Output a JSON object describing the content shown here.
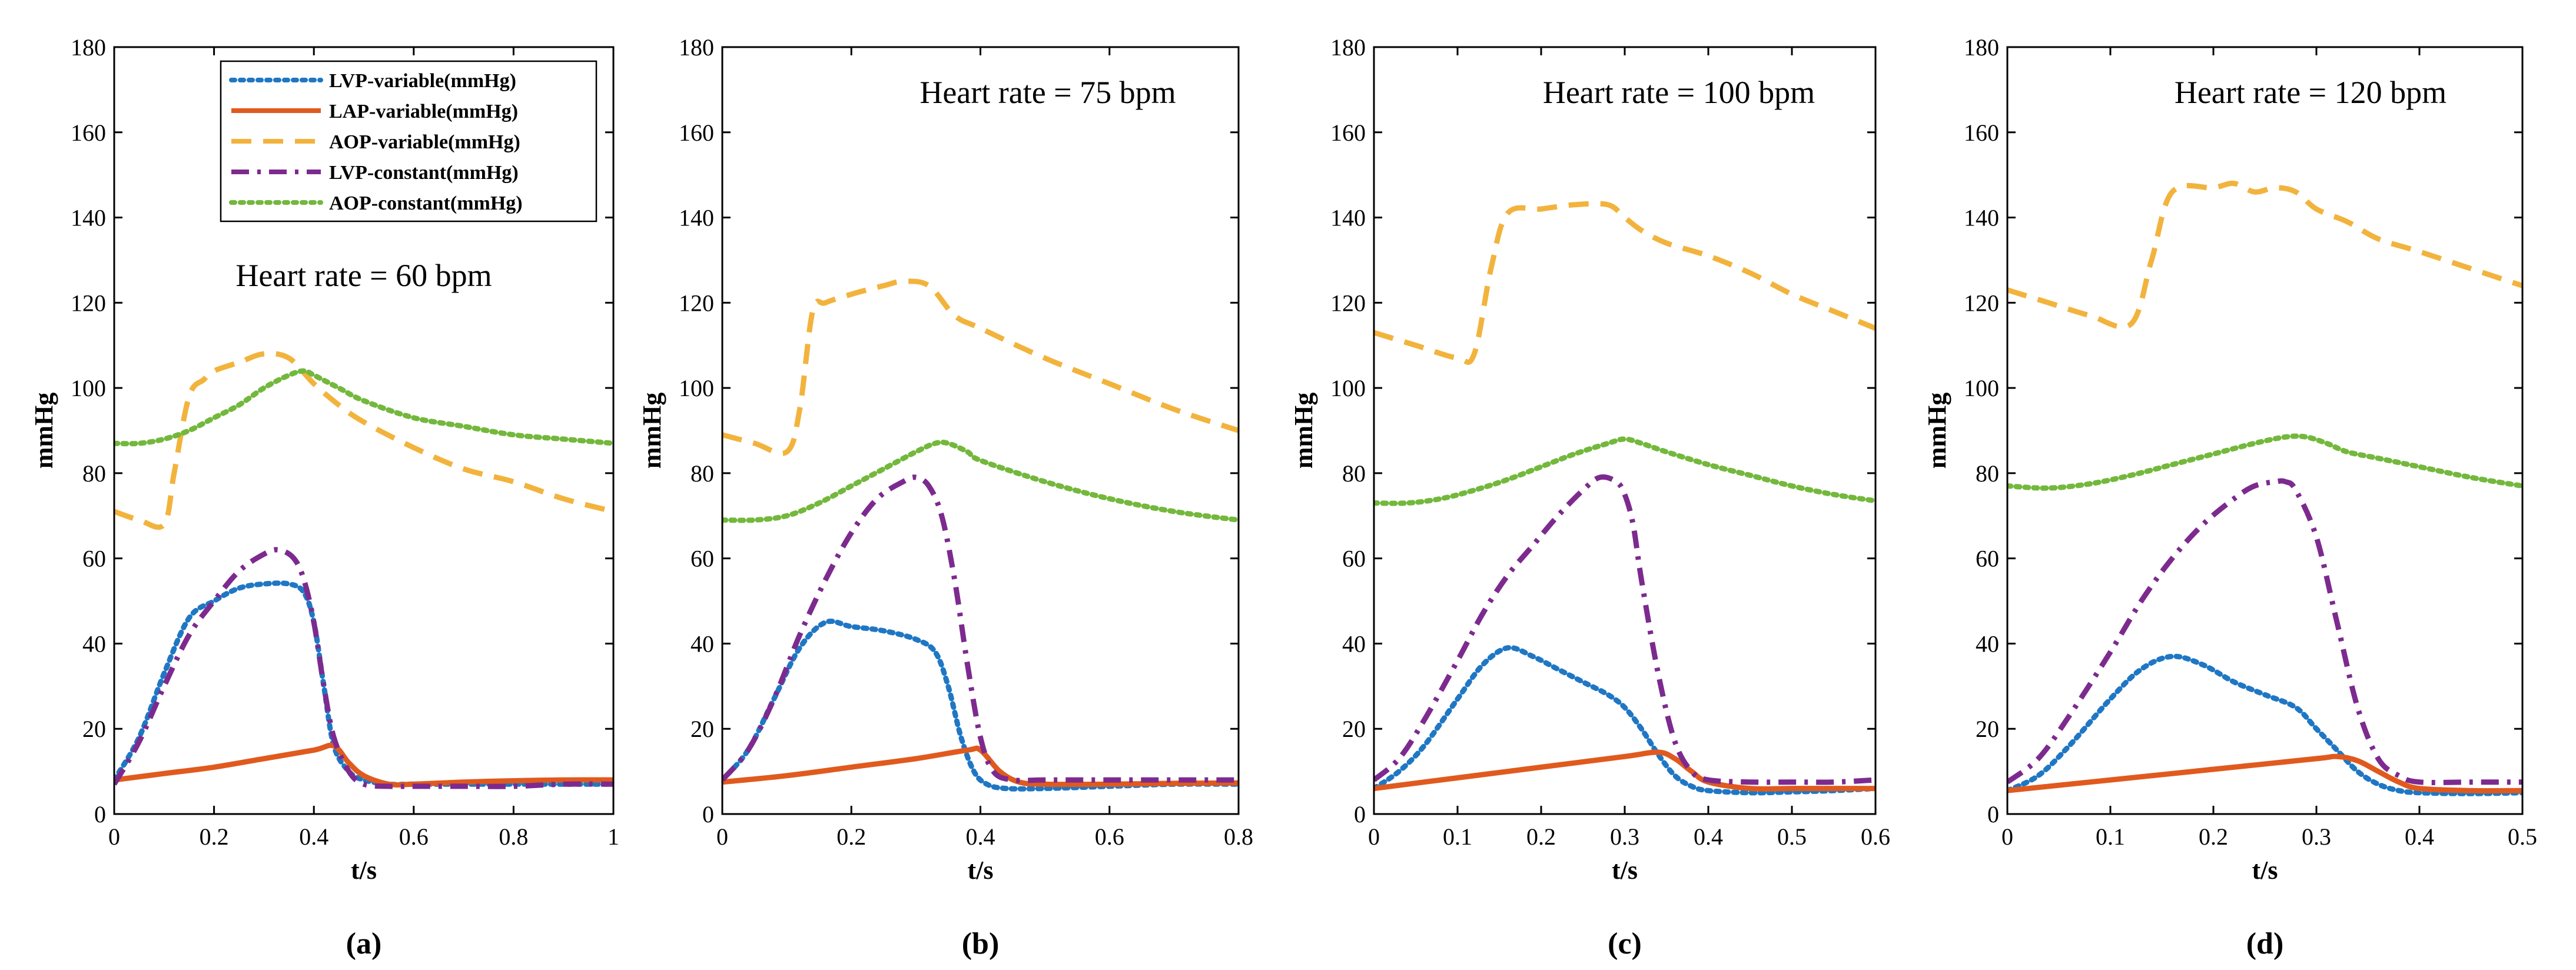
{
  "series_styles": [
    {
      "name": "LVP-variable(mmHg)",
      "color": "#1f77c4",
      "dash": "dot"
    },
    {
      "name": "LAP-variable(mmHg)",
      "color": "#e05a1e",
      "dash": "solid"
    },
    {
      "name": "AOP-variable(mmHg)",
      "color": "#f2b33d",
      "dash": "dash"
    },
    {
      "name": "LVP-constant(mmHg)",
      "color": "#7d2a8f",
      "dash": "dashdot"
    },
    {
      "name": "AOP-constant(mmHg)",
      "color": "#73b83c",
      "dash": "dot"
    }
  ],
  "chart_data": [
    {
      "type": "line",
      "panel_label": "(a)",
      "annotation": "Heart rate = 60 bpm",
      "xlabel": "t/s",
      "ylabel": "mmHg",
      "xlim": [
        0,
        1
      ],
      "ylim": [
        0,
        180
      ],
      "xticks": [
        0,
        0.2,
        0.4,
        0.6,
        0.8,
        1
      ],
      "xtick_labels": [
        "0",
        "0.2",
        "0.4",
        "0.6",
        "0.8",
        "1"
      ],
      "yticks": [
        0,
        20,
        40,
        60,
        80,
        100,
        120,
        140,
        160,
        180
      ],
      "legend": "top-right",
      "series": [
        {
          "name": "LVP-variable(mmHg)",
          "x": [
            0,
            0.05,
            0.1,
            0.15,
            0.2,
            0.25,
            0.3,
            0.35,
            0.38,
            0.4,
            0.42,
            0.44,
            0.47,
            0.5,
            0.55,
            0.6,
            0.7,
            0.8,
            0.9,
            1
          ],
          "y": [
            8,
            18,
            33,
            46,
            50,
            53,
            54,
            54,
            52,
            45,
            30,
            16,
            10,
            8,
            7,
            7,
            7,
            7,
            7,
            7
          ]
        },
        {
          "name": "LAP-variable(mmHg)",
          "x": [
            0,
            0.1,
            0.2,
            0.3,
            0.4,
            0.44,
            0.47,
            0.5,
            0.55,
            0.6,
            0.7,
            0.8,
            0.9,
            1
          ],
          "y": [
            8,
            9.5,
            11,
            13,
            15,
            16,
            12,
            9,
            7,
            7,
            7.5,
            7.8,
            8,
            8
          ]
        },
        {
          "name": "AOP-variable(mmHg)",
          "x": [
            0,
            0.05,
            0.1,
            0.12,
            0.15,
            0.18,
            0.2,
            0.25,
            0.3,
            0.35,
            0.4,
            0.45,
            0.5,
            0.6,
            0.7,
            0.8,
            0.9,
            1
          ],
          "y": [
            71,
            69,
            68,
            80,
            98,
            102,
            104,
            106,
            108,
            107,
            101,
            96,
            92,
            86,
            81,
            78,
            74,
            71
          ]
        },
        {
          "name": "LVP-constant(mmHg)",
          "x": [
            0,
            0.05,
            0.1,
            0.15,
            0.2,
            0.25,
            0.3,
            0.33,
            0.36,
            0.38,
            0.4,
            0.42,
            0.44,
            0.47,
            0.5,
            0.55,
            0.6,
            0.7,
            0.8,
            0.9,
            1
          ],
          "y": [
            7,
            17,
            30,
            42,
            50,
            57,
            61,
            62,
            60,
            55,
            45,
            30,
            18,
            10,
            7,
            6.5,
            6.5,
            6.5,
            6.5,
            7,
            7
          ]
        },
        {
          "name": "AOP-constant(mmHg)",
          "x": [
            0,
            0.05,
            0.1,
            0.15,
            0.2,
            0.25,
            0.3,
            0.35,
            0.38,
            0.4,
            0.45,
            0.5,
            0.6,
            0.7,
            0.8,
            0.9,
            1
          ],
          "y": [
            87,
            87,
            88,
            90,
            93,
            96,
            100,
            103,
            104,
            103,
            100,
            97,
            93,
            91,
            89,
            88,
            87
          ]
        }
      ]
    },
    {
      "type": "line",
      "panel_label": "(b)",
      "annotation": "Heart rate = 75 bpm",
      "xlabel": "t/s",
      "ylabel": "mmHg",
      "xlim": [
        0,
        0.8
      ],
      "ylim": [
        0,
        180
      ],
      "xticks": [
        0,
        0.2,
        0.4,
        0.6,
        0.8
      ],
      "xtick_labels": [
        "0",
        "0.2",
        "0.4",
        "0.6",
        "0.8"
      ],
      "yticks": [
        0,
        20,
        40,
        60,
        80,
        100,
        120,
        140,
        160,
        180
      ],
      "series": [
        {
          "name": "LVP-variable(mmHg)",
          "x": [
            0,
            0.04,
            0.08,
            0.12,
            0.16,
            0.2,
            0.25,
            0.3,
            0.33,
            0.35,
            0.37,
            0.39,
            0.41,
            0.44,
            0.5,
            0.6,
            0.7,
            0.8
          ],
          "y": [
            8,
            15,
            27,
            39,
            45,
            44,
            43,
            41,
            38,
            30,
            18,
            10,
            7,
            6,
            6,
            6.5,
            7,
            7
          ]
        },
        {
          "name": "LAP-variable(mmHg)",
          "x": [
            0,
            0.1,
            0.2,
            0.3,
            0.38,
            0.4,
            0.43,
            0.46,
            0.5,
            0.6,
            0.7,
            0.8
          ],
          "y": [
            7.5,
            9,
            11,
            13,
            15,
            15,
            10,
            7.5,
            7,
            7,
            7.2,
            7.3
          ]
        },
        {
          "name": "AOP-variable(mmHg)",
          "x": [
            0,
            0.05,
            0.1,
            0.12,
            0.14,
            0.16,
            0.2,
            0.25,
            0.28,
            0.32,
            0.36,
            0.4,
            0.5,
            0.6,
            0.7,
            0.8
          ],
          "y": [
            89,
            87,
            85,
            95,
            118,
            120,
            122,
            124,
            125,
            124,
            117,
            114,
            107,
            101,
            95,
            90
          ]
        },
        {
          "name": "LVP-constant(mmHg)",
          "x": [
            0,
            0.04,
            0.08,
            0.12,
            0.16,
            0.2,
            0.24,
            0.28,
            0.3,
            0.32,
            0.34,
            0.36,
            0.38,
            0.4,
            0.42,
            0.45,
            0.5,
            0.6,
            0.7,
            0.8
          ],
          "y": [
            8,
            15,
            27,
            42,
            55,
            66,
            74,
            78,
            79,
            77,
            70,
            55,
            35,
            18,
            10,
            8,
            8,
            8,
            8,
            8
          ]
        },
        {
          "name": "AOP-constant(mmHg)",
          "x": [
            0,
            0.05,
            0.1,
            0.15,
            0.2,
            0.25,
            0.3,
            0.33,
            0.35,
            0.38,
            0.4,
            0.5,
            0.6,
            0.7,
            0.8
          ],
          "y": [
            69,
            69,
            70,
            73,
            77,
            81,
            85,
            87,
            87,
            85,
            83,
            78,
            74,
            71,
            69
          ]
        }
      ]
    },
    {
      "type": "line",
      "panel_label": "(c)",
      "annotation": "Heart rate = 100 bpm",
      "xlabel": "t/s",
      "ylabel": "mmHg",
      "xlim": [
        0,
        0.6
      ],
      "ylim": [
        0,
        180
      ],
      "xticks": [
        0,
        0.1,
        0.2,
        0.3,
        0.4,
        0.5,
        0.6
      ],
      "xtick_labels": [
        "0",
        "0.1",
        "0.2",
        "0.3",
        "0.4",
        "0.5",
        "0.6"
      ],
      "yticks": [
        0,
        20,
        40,
        60,
        80,
        100,
        120,
        140,
        160,
        180
      ],
      "series": [
        {
          "name": "LVP-variable(mmHg)",
          "x": [
            0,
            0.03,
            0.06,
            0.1,
            0.13,
            0.16,
            0.19,
            0.22,
            0.25,
            0.28,
            0.3,
            0.32,
            0.34,
            0.36,
            0.38,
            0.4,
            0.45,
            0.5,
            0.55,
            0.6
          ],
          "y": [
            6,
            10,
            16,
            27,
            35,
            39,
            37,
            34,
            31,
            28,
            25,
            20,
            14,
            9,
            6.5,
            5.5,
            5,
            5.2,
            5.5,
            6
          ]
        },
        {
          "name": "LAP-variable(mmHg)",
          "x": [
            0,
            0.1,
            0.2,
            0.3,
            0.34,
            0.36,
            0.38,
            0.4,
            0.45,
            0.5,
            0.55,
            0.6
          ],
          "y": [
            6,
            8.5,
            11,
            13.5,
            14.5,
            13,
            10,
            7.5,
            6,
            6,
            6,
            6
          ]
        },
        {
          "name": "AOP-variable(mmHg)",
          "x": [
            0,
            0.05,
            0.1,
            0.12,
            0.14,
            0.16,
            0.2,
            0.24,
            0.28,
            0.3,
            0.32,
            0.35,
            0.4,
            0.45,
            0.5,
            0.55,
            0.6
          ],
          "y": [
            113,
            110,
            107,
            108,
            128,
            141,
            142,
            143,
            143,
            140,
            137,
            134,
            131,
            127,
            122,
            118,
            114
          ]
        },
        {
          "name": "LVP-constant(mmHg)",
          "x": [
            0,
            0.03,
            0.06,
            0.1,
            0.13,
            0.16,
            0.19,
            0.22,
            0.25,
            0.27,
            0.29,
            0.3,
            0.31,
            0.32,
            0.34,
            0.36,
            0.38,
            0.4,
            0.45,
            0.5,
            0.55,
            0.6
          ],
          "y": [
            8,
            13,
            22,
            36,
            47,
            56,
            63,
            70,
            76,
            79,
            78,
            75,
            68,
            55,
            33,
            17,
            10,
            8,
            7.5,
            7.5,
            7.5,
            8
          ]
        },
        {
          "name": "AOP-constant(mmHg)",
          "x": [
            0,
            0.04,
            0.08,
            0.12,
            0.16,
            0.2,
            0.24,
            0.28,
            0.3,
            0.32,
            0.35,
            0.4,
            0.45,
            0.5,
            0.55,
            0.6
          ],
          "y": [
            73,
            73,
            74,
            76,
            78.5,
            81.5,
            84.5,
            87,
            88,
            87,
            85,
            82,
            79.5,
            77,
            75,
            73.5
          ]
        }
      ]
    },
    {
      "type": "line",
      "panel_label": "(d)",
      "annotation": "Heart rate = 120 bpm",
      "xlabel": "t/s",
      "ylabel": "mmHg",
      "xlim": [
        0,
        0.5
      ],
      "ylim": [
        0,
        180
      ],
      "xticks": [
        0,
        0.1,
        0.2,
        0.3,
        0.4,
        0.5
      ],
      "xtick_labels": [
        "0",
        "0.1",
        "0.2",
        "0.3",
        "0.4",
        "0.5"
      ],
      "yticks": [
        0,
        20,
        40,
        60,
        80,
        100,
        120,
        140,
        160,
        180
      ],
      "series": [
        {
          "name": "LVP-variable(mmHg)",
          "x": [
            0,
            0.03,
            0.06,
            0.1,
            0.13,
            0.16,
            0.19,
            0.22,
            0.25,
            0.28,
            0.3,
            0.32,
            0.34,
            0.36,
            0.38,
            0.4,
            0.45,
            0.5
          ],
          "y": [
            5.5,
            9,
            16,
            27,
            34,
            37,
            35,
            31,
            28,
            25,
            20,
            15,
            10,
            7,
            5.5,
            5,
            4.8,
            5
          ]
        },
        {
          "name": "LAP-variable(mmHg)",
          "x": [
            0,
            0.1,
            0.2,
            0.3,
            0.32,
            0.34,
            0.36,
            0.38,
            0.4,
            0.45,
            0.5
          ],
          "y": [
            5.5,
            8,
            10.5,
            13,
            13.5,
            12.5,
            10,
            7.5,
            6,
            5.5,
            5.5
          ]
        },
        {
          "name": "AOP-variable(mmHg)",
          "x": [
            0,
            0.04,
            0.08,
            0.12,
            0.14,
            0.16,
            0.2,
            0.22,
            0.24,
            0.26,
            0.28,
            0.3,
            0.33,
            0.36,
            0.4,
            0.45,
            0.5
          ],
          "y": [
            123,
            120,
            117,
            115,
            130,
            146,
            147,
            148,
            146,
            147,
            146,
            142,
            139,
            135,
            132,
            128,
            124
          ]
        },
        {
          "name": "LVP-constant(mmHg)",
          "x": [
            0,
            0.03,
            0.06,
            0.1,
            0.13,
            0.16,
            0.19,
            0.22,
            0.24,
            0.26,
            0.27,
            0.28,
            0.3,
            0.32,
            0.34,
            0.36,
            0.38,
            0.4,
            0.45,
            0.5
          ],
          "y": [
            7.5,
            13,
            23,
            38,
            50,
            60,
            68,
            74,
            77,
            78,
            78,
            76,
            65,
            45,
            25,
            13,
            9,
            7.5,
            7.5,
            7.5
          ]
        },
        {
          "name": "AOP-constant(mmHg)",
          "x": [
            0,
            0.04,
            0.08,
            0.12,
            0.16,
            0.2,
            0.24,
            0.27,
            0.29,
            0.31,
            0.33,
            0.36,
            0.4,
            0.45,
            0.5
          ],
          "y": [
            77,
            76.5,
            77.5,
            79.5,
            82,
            84.5,
            87,
            88.5,
            88.5,
            87,
            85,
            83.5,
            81.5,
            79,
            77
          ]
        }
      ]
    }
  ]
}
